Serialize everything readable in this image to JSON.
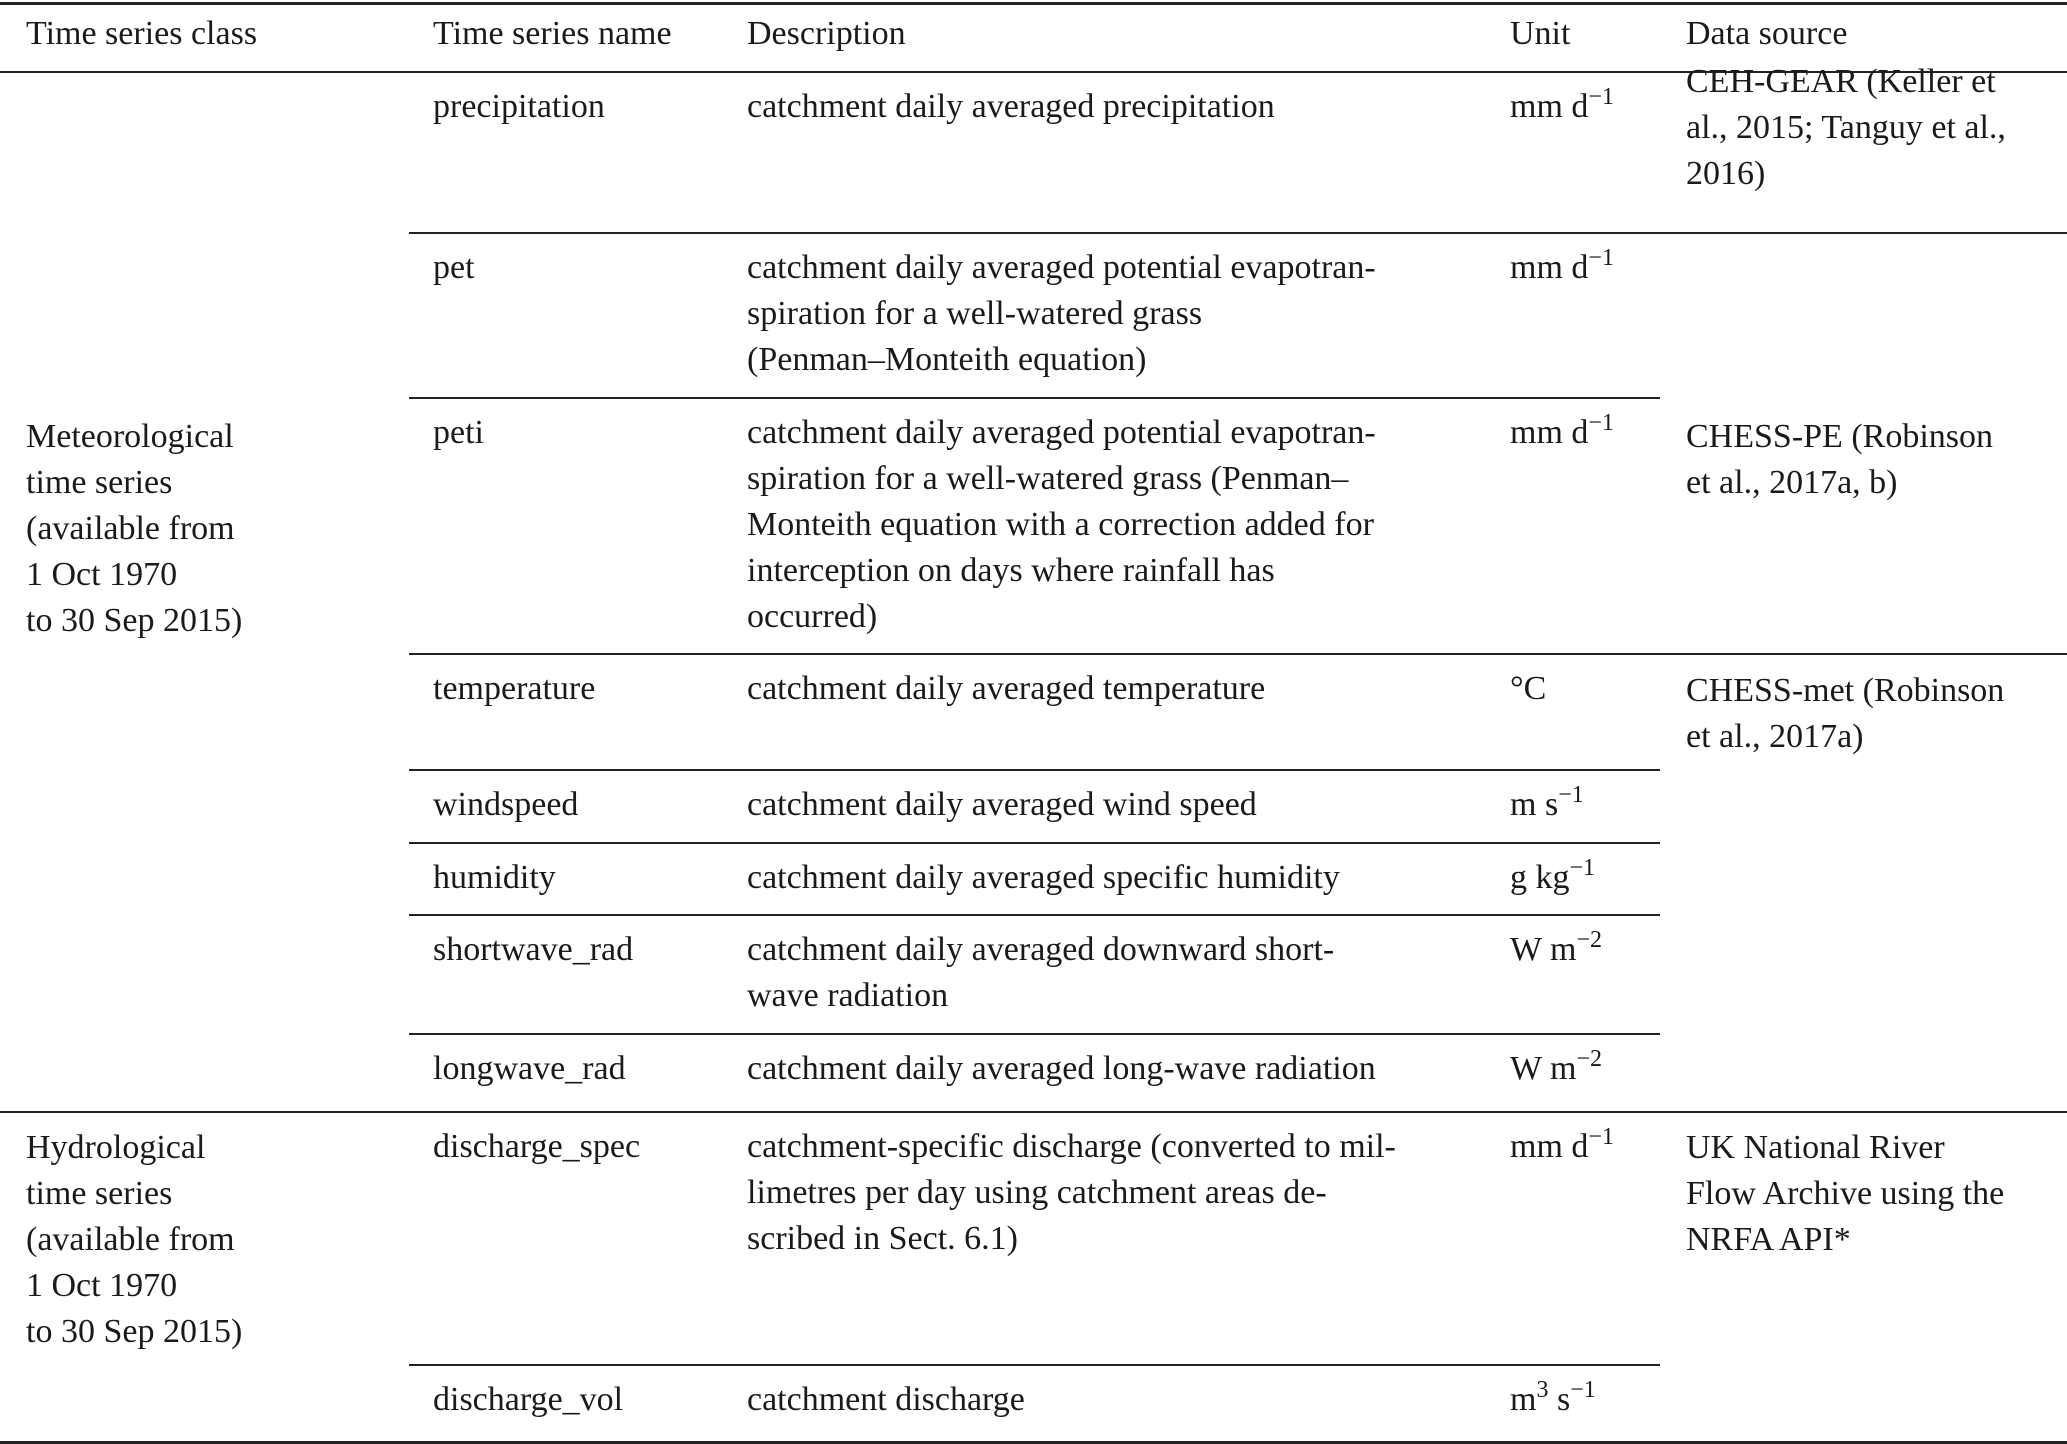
{
  "table": {
    "header": [
      "Time series class",
      "Time series name",
      "Description",
      "Unit",
      "Data source"
    ],
    "classes": [
      [
        "Meteorological",
        "time series",
        "(available from",
        "1 Oct 1970",
        "to 30 Sep 2015)"
      ],
      [
        "Hydrological",
        "time series",
        "(available from",
        "1 Oct 1970",
        "to 30 Sep 2015)"
      ]
    ],
    "rows": [
      {
        "name": "precipitation",
        "description": [
          "catchment daily averaged precipitation"
        ],
        "unit": [
          {
            "t": "mm d"
          },
          {
            "sup": "−1"
          }
        ]
      },
      {
        "name": "pet",
        "description": [
          "catchment daily averaged potential evapotran-",
          "spiration for a well-watered grass",
          "(Penman–Monteith equation)"
        ],
        "unit": [
          {
            "t": "mm d"
          },
          {
            "sup": "−1"
          }
        ]
      },
      {
        "name": "peti",
        "description": [
          "catchment daily averaged potential evapotran-",
          "spiration for a well-watered grass (Penman–",
          "Monteith equation with a correction added for",
          "interception on days where rainfall has",
          "occurred)"
        ],
        "unit": [
          {
            "t": "mm d"
          },
          {
            "sup": "−1"
          }
        ]
      },
      {
        "name": "temperature",
        "description": [
          "catchment daily averaged temperature"
        ],
        "unit": [
          {
            "t": "°C"
          }
        ]
      },
      {
        "name": "windspeed",
        "description": [
          "catchment daily averaged wind speed"
        ],
        "unit": [
          {
            "t": "m s"
          },
          {
            "sup": "−1"
          }
        ]
      },
      {
        "name": "humidity",
        "description": [
          "catchment daily averaged specific humidity"
        ],
        "unit": [
          {
            "t": "g kg"
          },
          {
            "sup": "−1"
          }
        ]
      },
      {
        "name": "shortwave_rad",
        "description": [
          "catchment daily averaged downward short-",
          "wave radiation"
        ],
        "unit": [
          {
            "t": "W m"
          },
          {
            "sup": "−2"
          }
        ]
      },
      {
        "name": "longwave_rad",
        "description": [
          "catchment daily averaged long-wave radiation"
        ],
        "unit": [
          {
            "t": "W m"
          },
          {
            "sup": "−2"
          }
        ]
      },
      {
        "name": "discharge_spec",
        "description": [
          "catchment-specific discharge (converted to mil-",
          "limetres per day using catchment areas de-",
          "scribed in Sect. 6.1)"
        ],
        "unit": [
          {
            "t": "mm d"
          },
          {
            "sup": "−1"
          }
        ]
      },
      {
        "name": "discharge_vol",
        "description": [
          "catchment discharge"
        ],
        "unit": [
          {
            "t": "m"
          },
          {
            "sup": "3"
          },
          {
            "t": " s"
          },
          {
            "sup": "−1"
          }
        ]
      }
    ],
    "sources": [
      [
        "CEH-GEAR (Keller et",
        "al., 2015; Tanguy et al.,",
        "2016)"
      ],
      [
        "CHESS-PE (Robinson",
        "et al., 2017a, b)"
      ],
      [
        "CHESS-met (Robinson",
        "et al., 2017a)"
      ],
      [
        "UK National River",
        "Flow Archive using the",
        "NRFA API*"
      ]
    ]
  }
}
